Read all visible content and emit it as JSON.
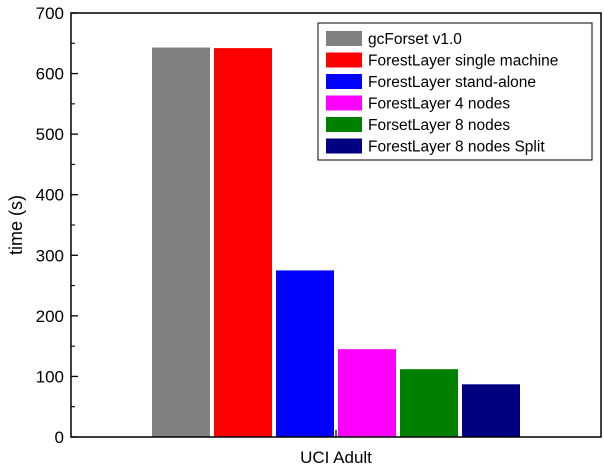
{
  "chart_data": {
    "type": "bar",
    "categories": [
      "UCI Adult"
    ],
    "series": [
      {
        "name": "gcForset v1.0",
        "values": [
          643
        ],
        "color": "#808080"
      },
      {
        "name": "ForestLayer single machine",
        "values": [
          642
        ],
        "color": "#ff0000"
      },
      {
        "name": "ForestLayer stand-alone",
        "values": [
          275
        ],
        "color": "#0000ff"
      },
      {
        "name": "ForestLayer 4 nodes",
        "values": [
          145
        ],
        "color": "#ff00ff"
      },
      {
        "name": "ForsetLayer 8 nodes",
        "values": [
          112
        ],
        "color": "#008000"
      },
      {
        "name": "ForestLayer 8 nodes Split",
        "values": [
          87
        ],
        "color": "#000080"
      }
    ],
    "ylabel": "time (s)",
    "xlabel": "",
    "ylim": [
      0,
      700
    ],
    "yticks": [
      0,
      100,
      200,
      300,
      400,
      500,
      600,
      700
    ],
    "legend_position": "top-right",
    "grid": false
  }
}
